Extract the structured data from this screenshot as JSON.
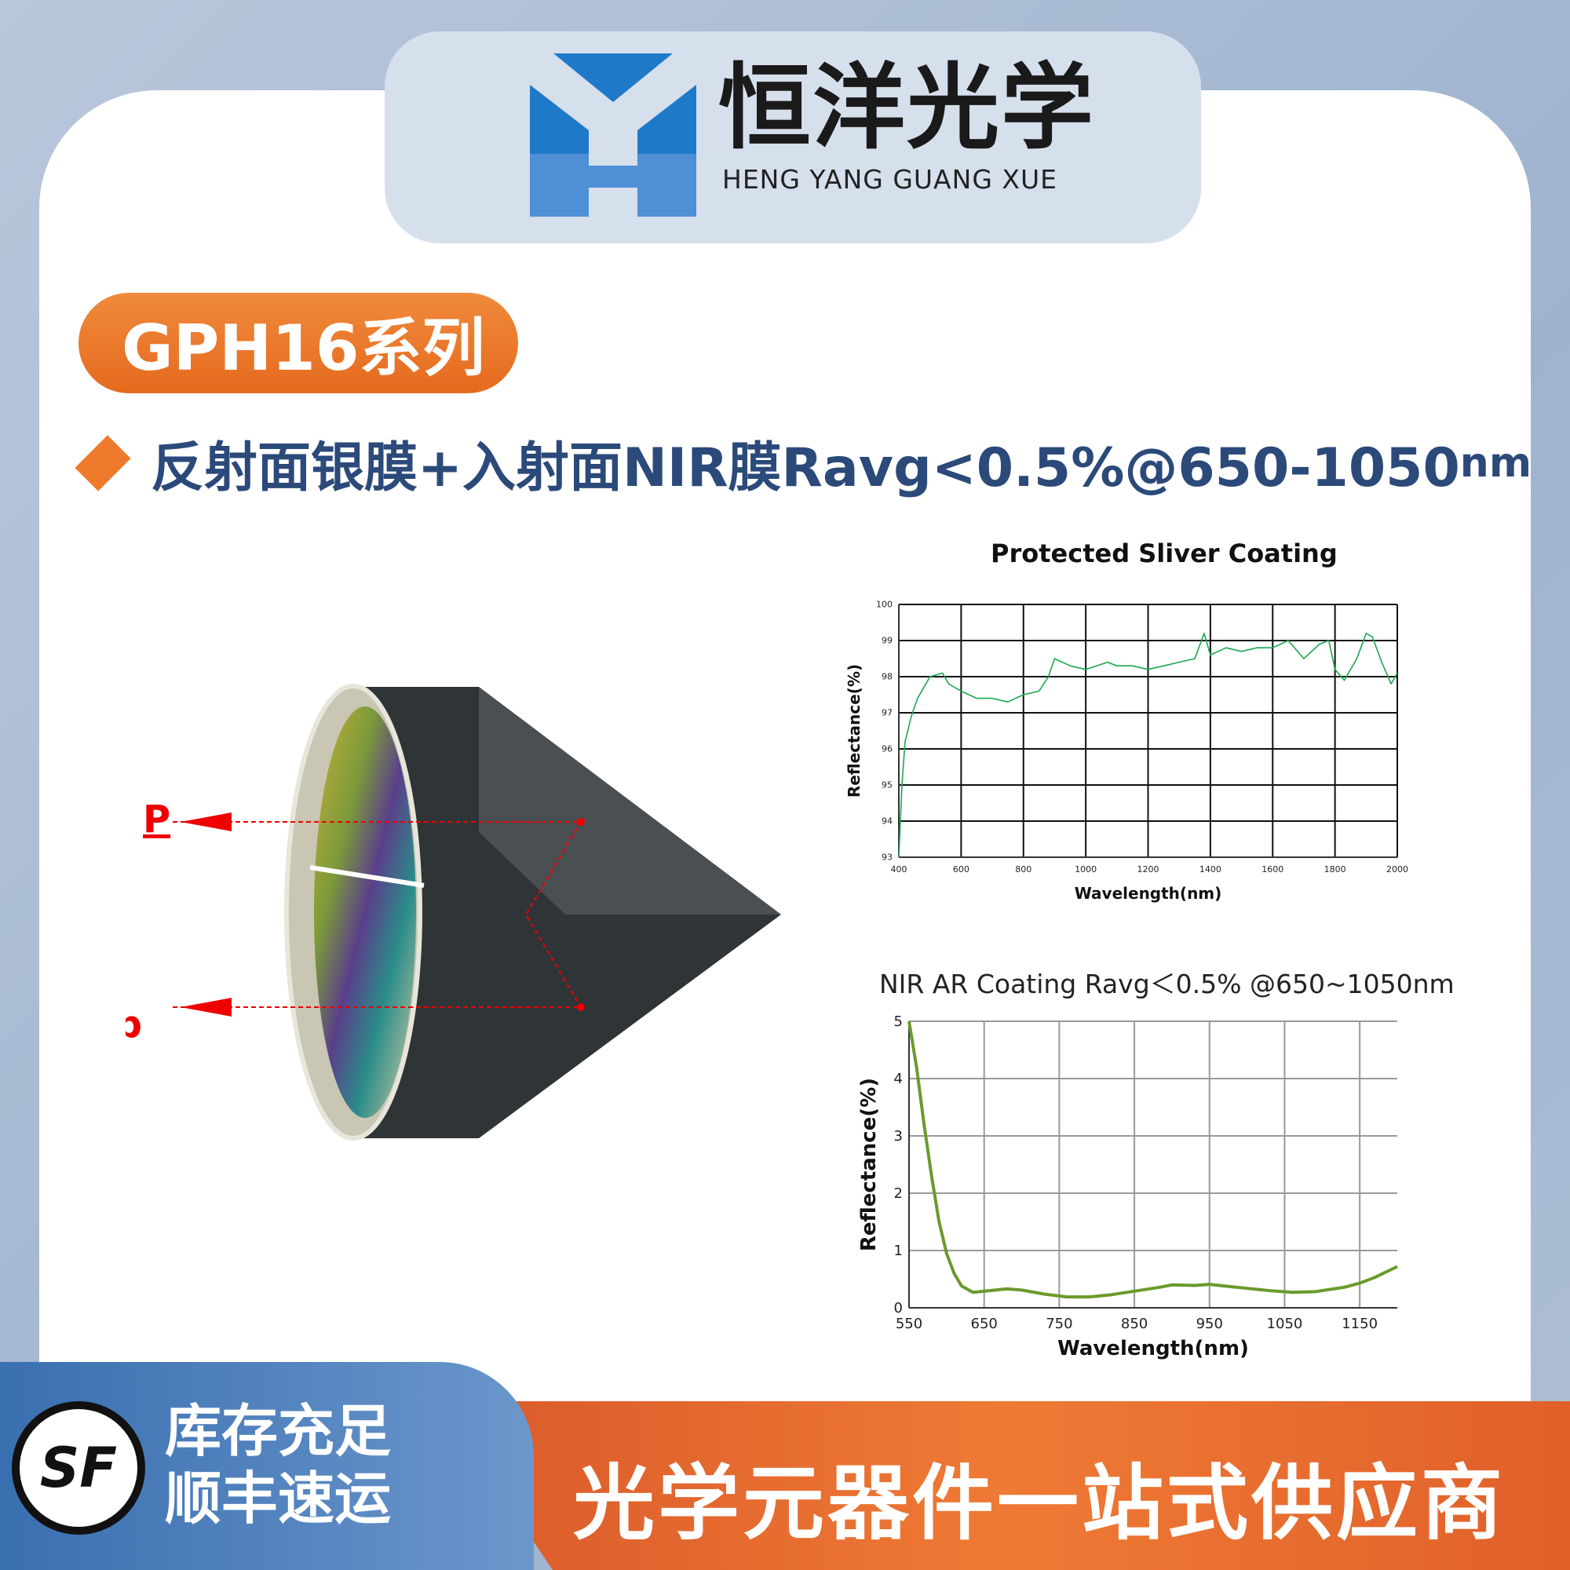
{
  "brand": {
    "name_cn": "恒洋光学",
    "name_en": "HENG YANG GUANG XUE",
    "colors": {
      "blue": "#1e7ac8",
      "orange": "#e96f22",
      "navy": "#2b4a7a"
    }
  },
  "series_badge": "GPH16系列",
  "feature": {
    "icon": "diamond-bullet-icon",
    "text": "反射面银膜+入射面NIR膜Ravg<0.5%@650-1050",
    "unit": "nm"
  },
  "prism": {
    "label_p": "P",
    "label_d": "d"
  },
  "footer": {
    "stock_line1": "库存充足",
    "stock_line2": "顺丰速运",
    "courier_logo": "SF",
    "slogan": "光学元器件一站式供应商"
  },
  "chart_data": [
    {
      "type": "line",
      "title": "Protected Sliver Coating",
      "xlabel": "Wavelength(nm)",
      "ylabel": "Reflectance(%)",
      "xlim": [
        400,
        2000
      ],
      "ylim": [
        93,
        100
      ],
      "grid": true,
      "color": "#1aa84e",
      "xticks": [
        400,
        600,
        800,
        1000,
        1200,
        1400,
        1600,
        1800,
        2000
      ],
      "yticks": [
        93,
        94,
        95,
        96,
        97,
        98,
        99,
        100
      ],
      "x": [
        400,
        410,
        420,
        440,
        460,
        480,
        500,
        540,
        560,
        600,
        650,
        700,
        750,
        800,
        850,
        880,
        900,
        950,
        1000,
        1070,
        1100,
        1150,
        1200,
        1250,
        1300,
        1350,
        1380,
        1400,
        1450,
        1500,
        1550,
        1600,
        1650,
        1700,
        1750,
        1780,
        1800,
        1830,
        1870,
        1900,
        1920,
        1950,
        1980,
        2000
      ],
      "y": [
        93.0,
        95.0,
        96.2,
        96.9,
        97.4,
        97.7,
        98.0,
        98.1,
        97.8,
        97.6,
        97.4,
        97.4,
        97.3,
        97.5,
        97.6,
        98.0,
        98.5,
        98.3,
        98.2,
        98.4,
        98.3,
        98.3,
        98.2,
        98.3,
        98.4,
        98.5,
        99.2,
        98.6,
        98.8,
        98.7,
        98.8,
        98.8,
        99.0,
        98.5,
        98.9,
        99.0,
        98.2,
        97.9,
        98.5,
        99.2,
        99.1,
        98.4,
        97.8,
        98.1
      ]
    },
    {
      "type": "line",
      "title": "NIR AR Coating Ravg＜0.5% @650~1050nm",
      "xlabel": "Wavelength(nm)",
      "ylabel": "Reflectance(%)",
      "xlim": [
        550,
        1200
      ],
      "ylim": [
        0,
        5
      ],
      "grid": true,
      "color": "#6a9a2c",
      "xticks": [
        550,
        650,
        750,
        850,
        950,
        1050,
        1150
      ],
      "yticks": [
        0,
        1,
        2,
        3,
        4,
        5
      ],
      "x": [
        550,
        560,
        570,
        580,
        590,
        600,
        610,
        620,
        635,
        650,
        680,
        700,
        730,
        760,
        790,
        820,
        850,
        880,
        900,
        930,
        950,
        970,
        1000,
        1030,
        1060,
        1090,
        1110,
        1130,
        1150,
        1170,
        1200
      ],
      "y": [
        5.0,
        4.2,
        3.2,
        2.3,
        1.5,
        0.95,
        0.6,
        0.38,
        0.27,
        0.29,
        0.33,
        0.31,
        0.24,
        0.19,
        0.19,
        0.23,
        0.29,
        0.35,
        0.4,
        0.39,
        0.41,
        0.38,
        0.34,
        0.3,
        0.27,
        0.28,
        0.32,
        0.36,
        0.43,
        0.53,
        0.72
      ]
    }
  ]
}
